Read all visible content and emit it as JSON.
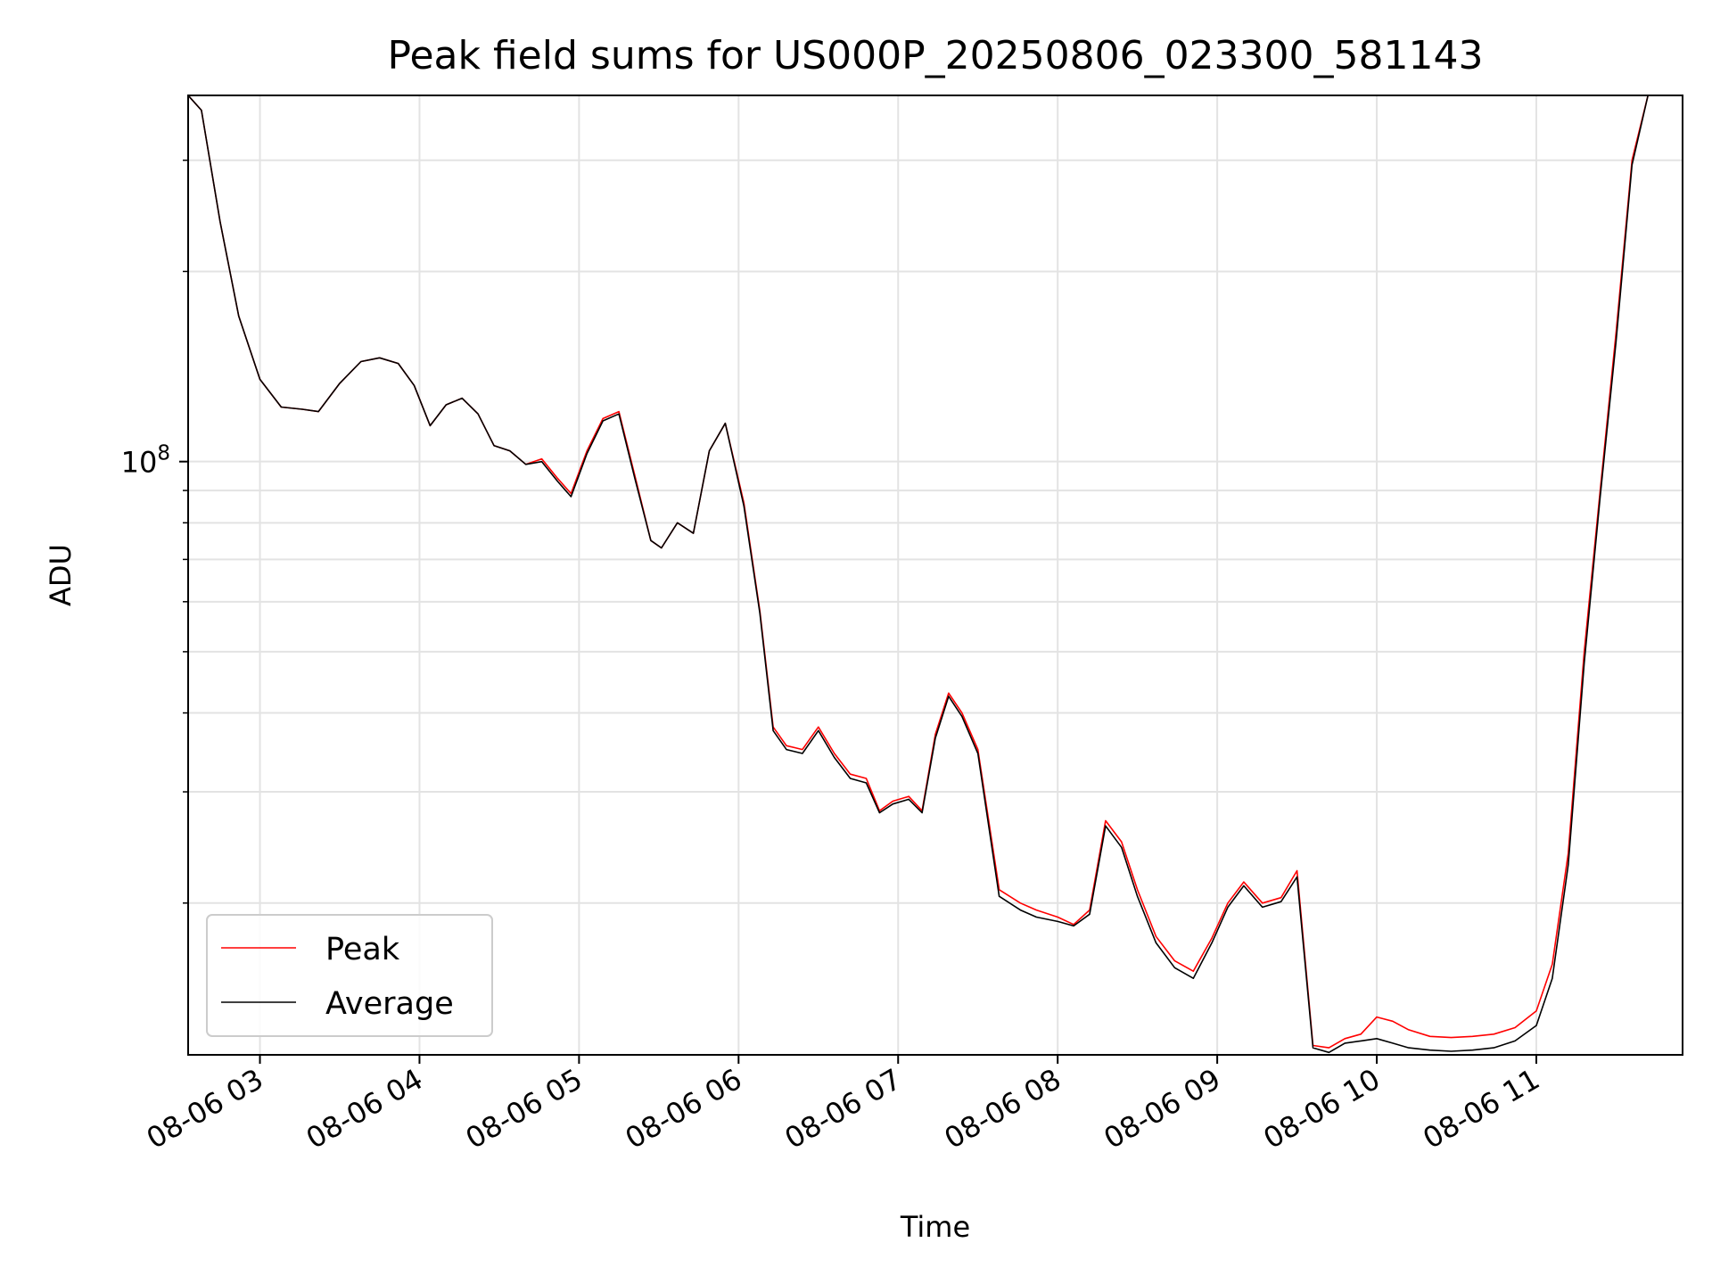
{
  "chart_data": {
    "type": "line",
    "title": "Peak field sums for US000P_20250806_023300_581143",
    "xlabel": "Time",
    "ylabel": "ADU",
    "y_scale": "log",
    "ylim": [
      11500000,
      380000000
    ],
    "xlim": [
      "2025-08-06 02:33",
      "2025-08-06 11:55"
    ],
    "x_ticks": [
      {
        "value": "2025-08-06 03:00",
        "label": "08-06 03"
      },
      {
        "value": "2025-08-06 04:00",
        "label": "08-06 04"
      },
      {
        "value": "2025-08-06 05:00",
        "label": "08-06 05"
      },
      {
        "value": "2025-08-06 06:00",
        "label": "08-06 06"
      },
      {
        "value": "2025-08-06 07:00",
        "label": "08-06 07"
      },
      {
        "value": "2025-08-06 08:00",
        "label": "08-06 08"
      },
      {
        "value": "2025-08-06 09:00",
        "label": "08-06 09"
      },
      {
        "value": "2025-08-06 10:00",
        "label": "08-06 10"
      },
      {
        "value": "2025-08-06 11:00",
        "label": "08-06 11"
      }
    ],
    "y_ticks": [
      {
        "value": 100000000,
        "base": "10",
        "exp": "8"
      }
    ],
    "grid": true,
    "legend_position": "lower-left",
    "series": [
      {
        "name": "Peak",
        "color": "#ff0000",
        "x": [
          "2025-08-06 02:33",
          "2025-08-06 02:38",
          "2025-08-06 02:45",
          "2025-08-06 02:52",
          "2025-08-06 03:00",
          "2025-08-06 03:08",
          "2025-08-06 03:16",
          "2025-08-06 03:22",
          "2025-08-06 03:30",
          "2025-08-06 03:38",
          "2025-08-06 03:45",
          "2025-08-06 03:52",
          "2025-08-06 03:58",
          "2025-08-06 04:04",
          "2025-08-06 04:10",
          "2025-08-06 04:16",
          "2025-08-06 04:22",
          "2025-08-06 04:28",
          "2025-08-06 04:34",
          "2025-08-06 04:40",
          "2025-08-06 04:46",
          "2025-08-06 04:52",
          "2025-08-06 04:57",
          "2025-08-06 05:03",
          "2025-08-06 05:09",
          "2025-08-06 05:15",
          "2025-08-06 05:21",
          "2025-08-06 05:27",
          "2025-08-06 05:31",
          "2025-08-06 05:37",
          "2025-08-06 05:43",
          "2025-08-06 05:49",
          "2025-08-06 05:55",
          "2025-08-06 06:02",
          "2025-08-06 06:08",
          "2025-08-06 06:13",
          "2025-08-06 06:18",
          "2025-08-06 06:24",
          "2025-08-06 06:30",
          "2025-08-06 06:36",
          "2025-08-06 06:42",
          "2025-08-06 06:48",
          "2025-08-06 06:53",
          "2025-08-06 06:58",
          "2025-08-06 07:04",
          "2025-08-06 07:09",
          "2025-08-06 07:14",
          "2025-08-06 07:19",
          "2025-08-06 07:24",
          "2025-08-06 07:30",
          "2025-08-06 07:38",
          "2025-08-06 07:46",
          "2025-08-06 07:52",
          "2025-08-06 08:00",
          "2025-08-06 08:06",
          "2025-08-06 08:12",
          "2025-08-06 08:18",
          "2025-08-06 08:24",
          "2025-08-06 08:30",
          "2025-08-06 08:37",
          "2025-08-06 08:44",
          "2025-08-06 08:51",
          "2025-08-06 08:58",
          "2025-08-06 09:04",
          "2025-08-06 09:10",
          "2025-08-06 09:17",
          "2025-08-06 09:24",
          "2025-08-06 09:30",
          "2025-08-06 09:36",
          "2025-08-06 09:42",
          "2025-08-06 09:48",
          "2025-08-06 09:54",
          "2025-08-06 10:00",
          "2025-08-06 10:06",
          "2025-08-06 10:12",
          "2025-08-06 10:20",
          "2025-08-06 10:28",
          "2025-08-06 10:36",
          "2025-08-06 10:44",
          "2025-08-06 10:52",
          "2025-08-06 11:00",
          "2025-08-06 11:06",
          "2025-08-06 11:12",
          "2025-08-06 11:18",
          "2025-08-06 11:24",
          "2025-08-06 11:30",
          "2025-08-06 11:36",
          "2025-08-06 11:42",
          "2025-08-06 11:48",
          "2025-08-06 11:53"
        ],
        "y": [
          380000000,
          360000000,
          240000000,
          170000000,
          135000000,
          122000000,
          121000000,
          120000000,
          133000000,
          144000000,
          146000000,
          143000000,
          132000000,
          114000000,
          123000000,
          126000000,
          119000000,
          106000000,
          104000000,
          99000000,
          101000000,
          94000000,
          89000000,
          104000000,
          117000000,
          120000000,
          95000000,
          75000000,
          73000000,
          80000000,
          77000000,
          104000000,
          115000000,
          86000000,
          58000000,
          38000000,
          35500000,
          35000000,
          38000000,
          34500000,
          32000000,
          31500000,
          28000000,
          29000000,
          29500000,
          28000000,
          37000000,
          43000000,
          40000000,
          35000000,
          21000000,
          20000000,
          19500000,
          19000000,
          18500000,
          19500000,
          27000000,
          25000000,
          21000000,
          17700000,
          16200000,
          15600000,
          17600000,
          20000000,
          21600000,
          20000000,
          20400000,
          22500000,
          11900000,
          11800000,
          12200000,
          12400000,
          13200000,
          13000000,
          12600000,
          12300000,
          12250000,
          12300000,
          12400000,
          12700000,
          13500000,
          16000000,
          24000000,
          50000000,
          90000000,
          160000000,
          300000000,
          380000000,
          380000000,
          380000000
        ]
      },
      {
        "name": "Average",
        "color": "#000000",
        "x": [
          "2025-08-06 02:33",
          "2025-08-06 02:38",
          "2025-08-06 02:45",
          "2025-08-06 02:52",
          "2025-08-06 03:00",
          "2025-08-06 03:08",
          "2025-08-06 03:16",
          "2025-08-06 03:22",
          "2025-08-06 03:30",
          "2025-08-06 03:38",
          "2025-08-06 03:45",
          "2025-08-06 03:52",
          "2025-08-06 03:58",
          "2025-08-06 04:04",
          "2025-08-06 04:10",
          "2025-08-06 04:16",
          "2025-08-06 04:22",
          "2025-08-06 04:28",
          "2025-08-06 04:34",
          "2025-08-06 04:40",
          "2025-08-06 04:46",
          "2025-08-06 04:52",
          "2025-08-06 04:57",
          "2025-08-06 05:03",
          "2025-08-06 05:09",
          "2025-08-06 05:15",
          "2025-08-06 05:21",
          "2025-08-06 05:27",
          "2025-08-06 05:31",
          "2025-08-06 05:37",
          "2025-08-06 05:43",
          "2025-08-06 05:49",
          "2025-08-06 05:55",
          "2025-08-06 06:02",
          "2025-08-06 06:08",
          "2025-08-06 06:13",
          "2025-08-06 06:18",
          "2025-08-06 06:24",
          "2025-08-06 06:30",
          "2025-08-06 06:36",
          "2025-08-06 06:42",
          "2025-08-06 06:48",
          "2025-08-06 06:53",
          "2025-08-06 06:58",
          "2025-08-06 07:04",
          "2025-08-06 07:09",
          "2025-08-06 07:14",
          "2025-08-06 07:19",
          "2025-08-06 07:24",
          "2025-08-06 07:30",
          "2025-08-06 07:38",
          "2025-08-06 07:46",
          "2025-08-06 07:52",
          "2025-08-06 08:00",
          "2025-08-06 08:06",
          "2025-08-06 08:12",
          "2025-08-06 08:18",
          "2025-08-06 08:24",
          "2025-08-06 08:30",
          "2025-08-06 08:37",
          "2025-08-06 08:44",
          "2025-08-06 08:51",
          "2025-08-06 08:58",
          "2025-08-06 09:04",
          "2025-08-06 09:10",
          "2025-08-06 09:17",
          "2025-08-06 09:24",
          "2025-08-06 09:30",
          "2025-08-06 09:36",
          "2025-08-06 09:42",
          "2025-08-06 09:48",
          "2025-08-06 09:54",
          "2025-08-06 10:00",
          "2025-08-06 10:06",
          "2025-08-06 10:12",
          "2025-08-06 10:20",
          "2025-08-06 10:28",
          "2025-08-06 10:36",
          "2025-08-06 10:44",
          "2025-08-06 10:52",
          "2025-08-06 11:00",
          "2025-08-06 11:06",
          "2025-08-06 11:12",
          "2025-08-06 11:18",
          "2025-08-06 11:24",
          "2025-08-06 11:30",
          "2025-08-06 11:36",
          "2025-08-06 11:42",
          "2025-08-06 11:48",
          "2025-08-06 11:53"
        ],
        "y": [
          380000000,
          360000000,
          240000000,
          170000000,
          135000000,
          122000000,
          121000000,
          120000000,
          133000000,
          144000000,
          146000000,
          143000000,
          132000000,
          114000000,
          123000000,
          126000000,
          119000000,
          106000000,
          104000000,
          99000000,
          100000000,
          93000000,
          88000000,
          103000000,
          116000000,
          119000000,
          94000000,
          75000000,
          73000000,
          80000000,
          77000000,
          104000000,
          115000000,
          85000000,
          57500000,
          37500000,
          35000000,
          34500000,
          37500000,
          34000000,
          31500000,
          31000000,
          27800000,
          28700000,
          29200000,
          27800000,
          36500000,
          42500000,
          39500000,
          34500000,
          20500000,
          19500000,
          19000000,
          18700000,
          18400000,
          19200000,
          26500000,
          24500000,
          20500000,
          17300000,
          15800000,
          15200000,
          17300000,
          19700000,
          21300000,
          19700000,
          20100000,
          22000000,
          11800000,
          11600000,
          12000000,
          12100000,
          12200000,
          12000000,
          11800000,
          11700000,
          11650000,
          11700000,
          11800000,
          12100000,
          12800000,
          15200000,
          23000000,
          48000000,
          88000000,
          155000000,
          295000000,
          380000000,
          380000000,
          380000000
        ]
      }
    ]
  }
}
